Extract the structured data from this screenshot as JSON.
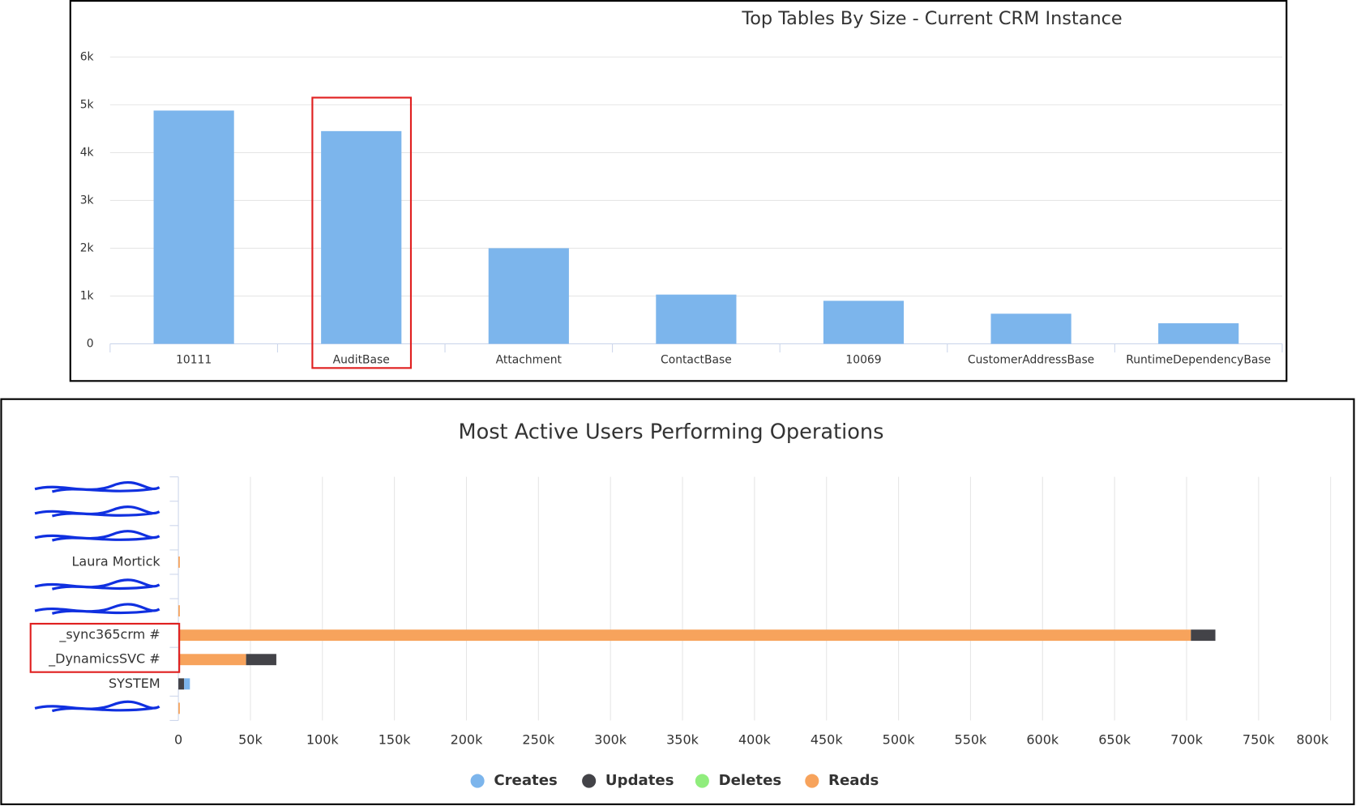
{
  "chart_data": [
    {
      "type": "bar",
      "title": "Top Tables By Size - Current CRM Instance",
      "categories": [
        "10111",
        "AuditBase",
        "Attachment",
        "ContactBase",
        "10069",
        "CustomerAddressBase",
        "RuntimeDependencyBase"
      ],
      "values": [
        4880,
        4450,
        2000,
        1030,
        900,
        630,
        430
      ],
      "color": "#7cb5ec",
      "ylim": [
        0,
        6000
      ],
      "yticks": [
        0,
        {
          "value": 1000,
          "label": "1k"
        },
        {
          "value": 2000,
          "label": "2k"
        },
        {
          "value": 3000,
          "label": "3k"
        },
        {
          "value": 4000,
          "label": "4k"
        },
        {
          "value": 5000,
          "label": "5k"
        },
        {
          "value": 6000,
          "label": "6k"
        }
      ],
      "grid": true
    },
    {
      "type": "stacked-barh",
      "title": "Most Active Users Performing Operations",
      "categories": [
        null,
        null,
        null,
        "Laura Mortick",
        null,
        null,
        "_sync365crm #",
        "_DynamicsSVC #",
        "SYSTEM",
        null
      ],
      "series": [
        {
          "name": "Creates",
          "color": "#7cb5ec",
          "values": [
            0,
            0,
            0,
            0,
            0,
            0,
            0,
            0,
            4000,
            0
          ]
        },
        {
          "name": "Updates",
          "color": "#434348",
          "values": [
            0,
            0,
            0,
            0,
            0,
            0,
            17000,
            21000,
            4000,
            0
          ]
        },
        {
          "name": "Deletes",
          "color": "#90ed7d",
          "values": [
            0,
            0,
            0,
            0,
            0,
            0,
            0,
            0,
            0,
            0
          ]
        },
        {
          "name": "Reads",
          "color": "#f7a35c",
          "values": [
            0,
            0,
            0,
            1000,
            0,
            1000,
            703000,
            47000,
            0,
            1000
          ]
        }
      ],
      "xlim": [
        0,
        800000
      ],
      "xticks": [
        0,
        {
          "value": 50000,
          "label": "50k"
        },
        {
          "value": 100000,
          "label": "100k"
        },
        {
          "value": 150000,
          "label": "150k"
        },
        {
          "value": 200000,
          "label": "200k"
        },
        {
          "value": 250000,
          "label": "250k"
        },
        {
          "value": 300000,
          "label": "300k"
        },
        {
          "value": 350000,
          "label": "350k"
        },
        {
          "value": 400000,
          "label": "400k"
        },
        {
          "value": 450000,
          "label": "450k"
        },
        {
          "value": 500000,
          "label": "500k"
        },
        {
          "value": 550000,
          "label": "550k"
        },
        {
          "value": 600000,
          "label": "600k"
        },
        {
          "value": 650000,
          "label": "650k"
        },
        {
          "value": 700000,
          "label": "700k"
        },
        {
          "value": 750000,
          "label": "750k"
        },
        {
          "value": 800000,
          "label": "800k"
        }
      ],
      "grid": true,
      "legend": "bottom"
    }
  ]
}
